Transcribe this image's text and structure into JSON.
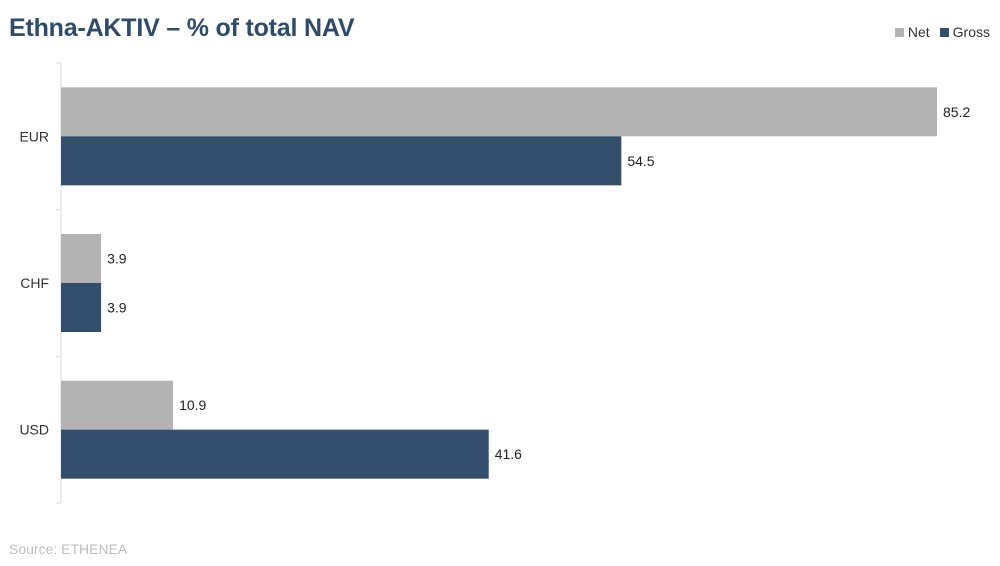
{
  "title": "Ethna-AKTIV – % of total NAV",
  "source": "Source: ETHENEA",
  "legend": {
    "net_label": "Net",
    "gross_label": "Gross"
  },
  "colors": {
    "net": "#b3b3b3",
    "gross": "#334f6b",
    "axis": "#d9d9d9"
  },
  "chart_data": {
    "type": "bar",
    "orientation": "horizontal",
    "categories": [
      "EUR",
      "CHF",
      "USD"
    ],
    "series": [
      {
        "name": "Net",
        "values": [
          85.2,
          3.9,
          10.9
        ]
      },
      {
        "name": "Gross",
        "values": [
          54.5,
          3.9,
          41.6
        ]
      }
    ],
    "xlim": [
      0,
      90
    ],
    "grid": false,
    "legend_position": "top-right"
  }
}
